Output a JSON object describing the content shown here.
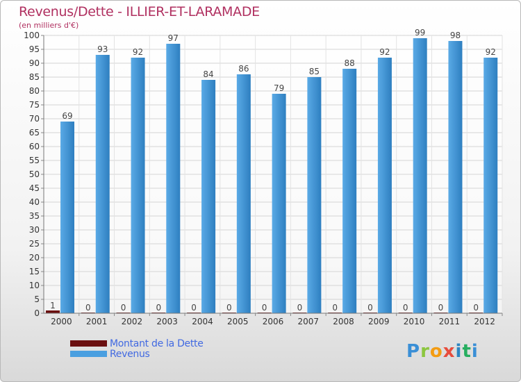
{
  "chart": {
    "title": "Revenus/Dette - ILLIER-ET-LARAMADE",
    "subtitle": "(en milliers d'€)"
  },
  "legend": {
    "debt_label": "Montant de la Dette",
    "revenue_label": "Revenus"
  },
  "logo": {
    "text": "Proxiti",
    "letters": [
      "P",
      "r",
      "o",
      "x",
      "i",
      "t",
      "i"
    ]
  },
  "colors": {
    "debt": "#6b0f0f",
    "revenue_light": "#5aaae6",
    "revenue_dark": "#2e7fc0",
    "title": "#b03060",
    "legend_text": "#4169e1"
  },
  "chart_data": {
    "type": "bar",
    "title": "Revenus/Dette - ILLIER-ET-LARAMADE",
    "subtitle": "(en milliers d'€)",
    "categories": [
      "2000",
      "2001",
      "2002",
      "2003",
      "2004",
      "2005",
      "2006",
      "2007",
      "2008",
      "2009",
      "2010",
      "2011",
      "2012"
    ],
    "series": [
      {
        "name": "Montant de la Dette",
        "values": [
          1,
          0,
          0,
          0,
          0,
          0,
          0,
          0,
          0,
          0,
          0,
          0,
          0
        ]
      },
      {
        "name": "Revenus",
        "values": [
          69,
          93,
          92,
          97,
          84,
          86,
          79,
          85,
          88,
          92,
          99,
          98,
          92
        ]
      }
    ],
    "ylim": [
      0,
      100
    ],
    "yticks": [
      0,
      5,
      10,
      15,
      20,
      25,
      30,
      35,
      40,
      45,
      50,
      55,
      60,
      65,
      70,
      75,
      80,
      85,
      90,
      95,
      100
    ],
    "grid": true,
    "legend_position": "bottom-left"
  }
}
